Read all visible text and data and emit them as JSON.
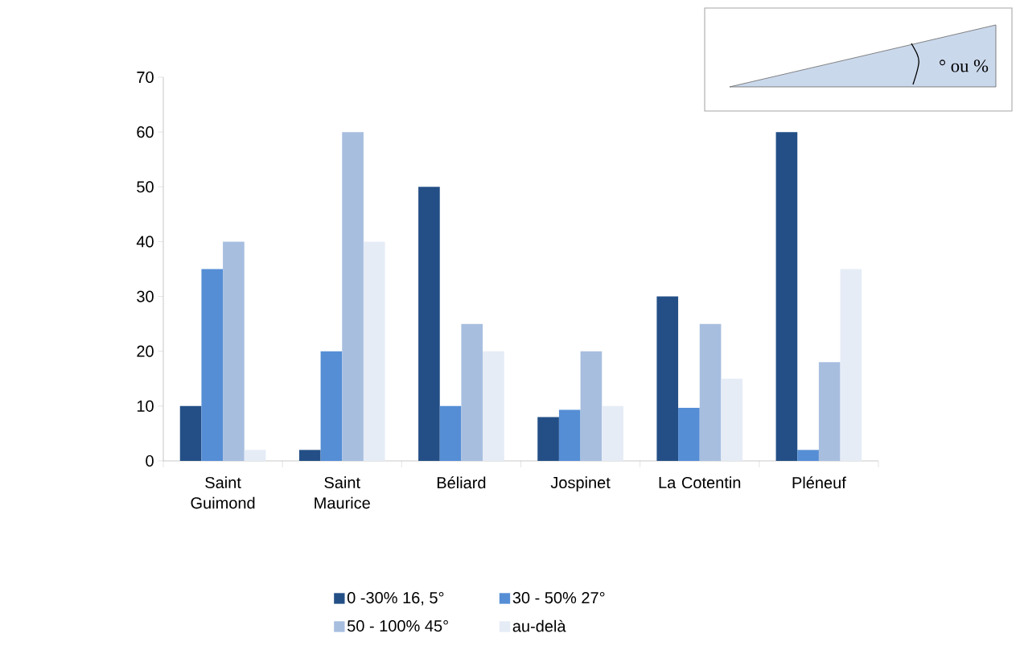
{
  "chart_data": {
    "type": "bar",
    "categories": [
      "Saint Guimond",
      "Saint Maurice",
      "Béliard",
      "Jospinet",
      "La Cotentin",
      "Pléneuf"
    ],
    "series": [
      {
        "name": "0 -30%        16, 5°",
        "color": "#244f86",
        "values": [
          10,
          2,
          50,
          8,
          30,
          60
        ]
      },
      {
        "name": "30 - 50%          27°",
        "color": "#558ed5",
        "values": [
          35,
          20,
          10,
          9.3,
          9.7,
          2
        ]
      },
      {
        "name": "50 - 100%      45°",
        "color": "#a7bedf",
        "values": [
          40,
          60,
          25,
          20,
          25,
          18
        ]
      },
      {
        "name": "au-delà",
        "color": "#e5ecf6",
        "values": [
          2,
          40,
          20,
          10,
          15,
          35
        ]
      }
    ],
    "ylim": [
      0,
      70
    ],
    "yticks": [
      0,
      10,
      20,
      30,
      40,
      50,
      60,
      70
    ],
    "legend": "bottom",
    "annotations": [
      "° ou %"
    ]
  }
}
